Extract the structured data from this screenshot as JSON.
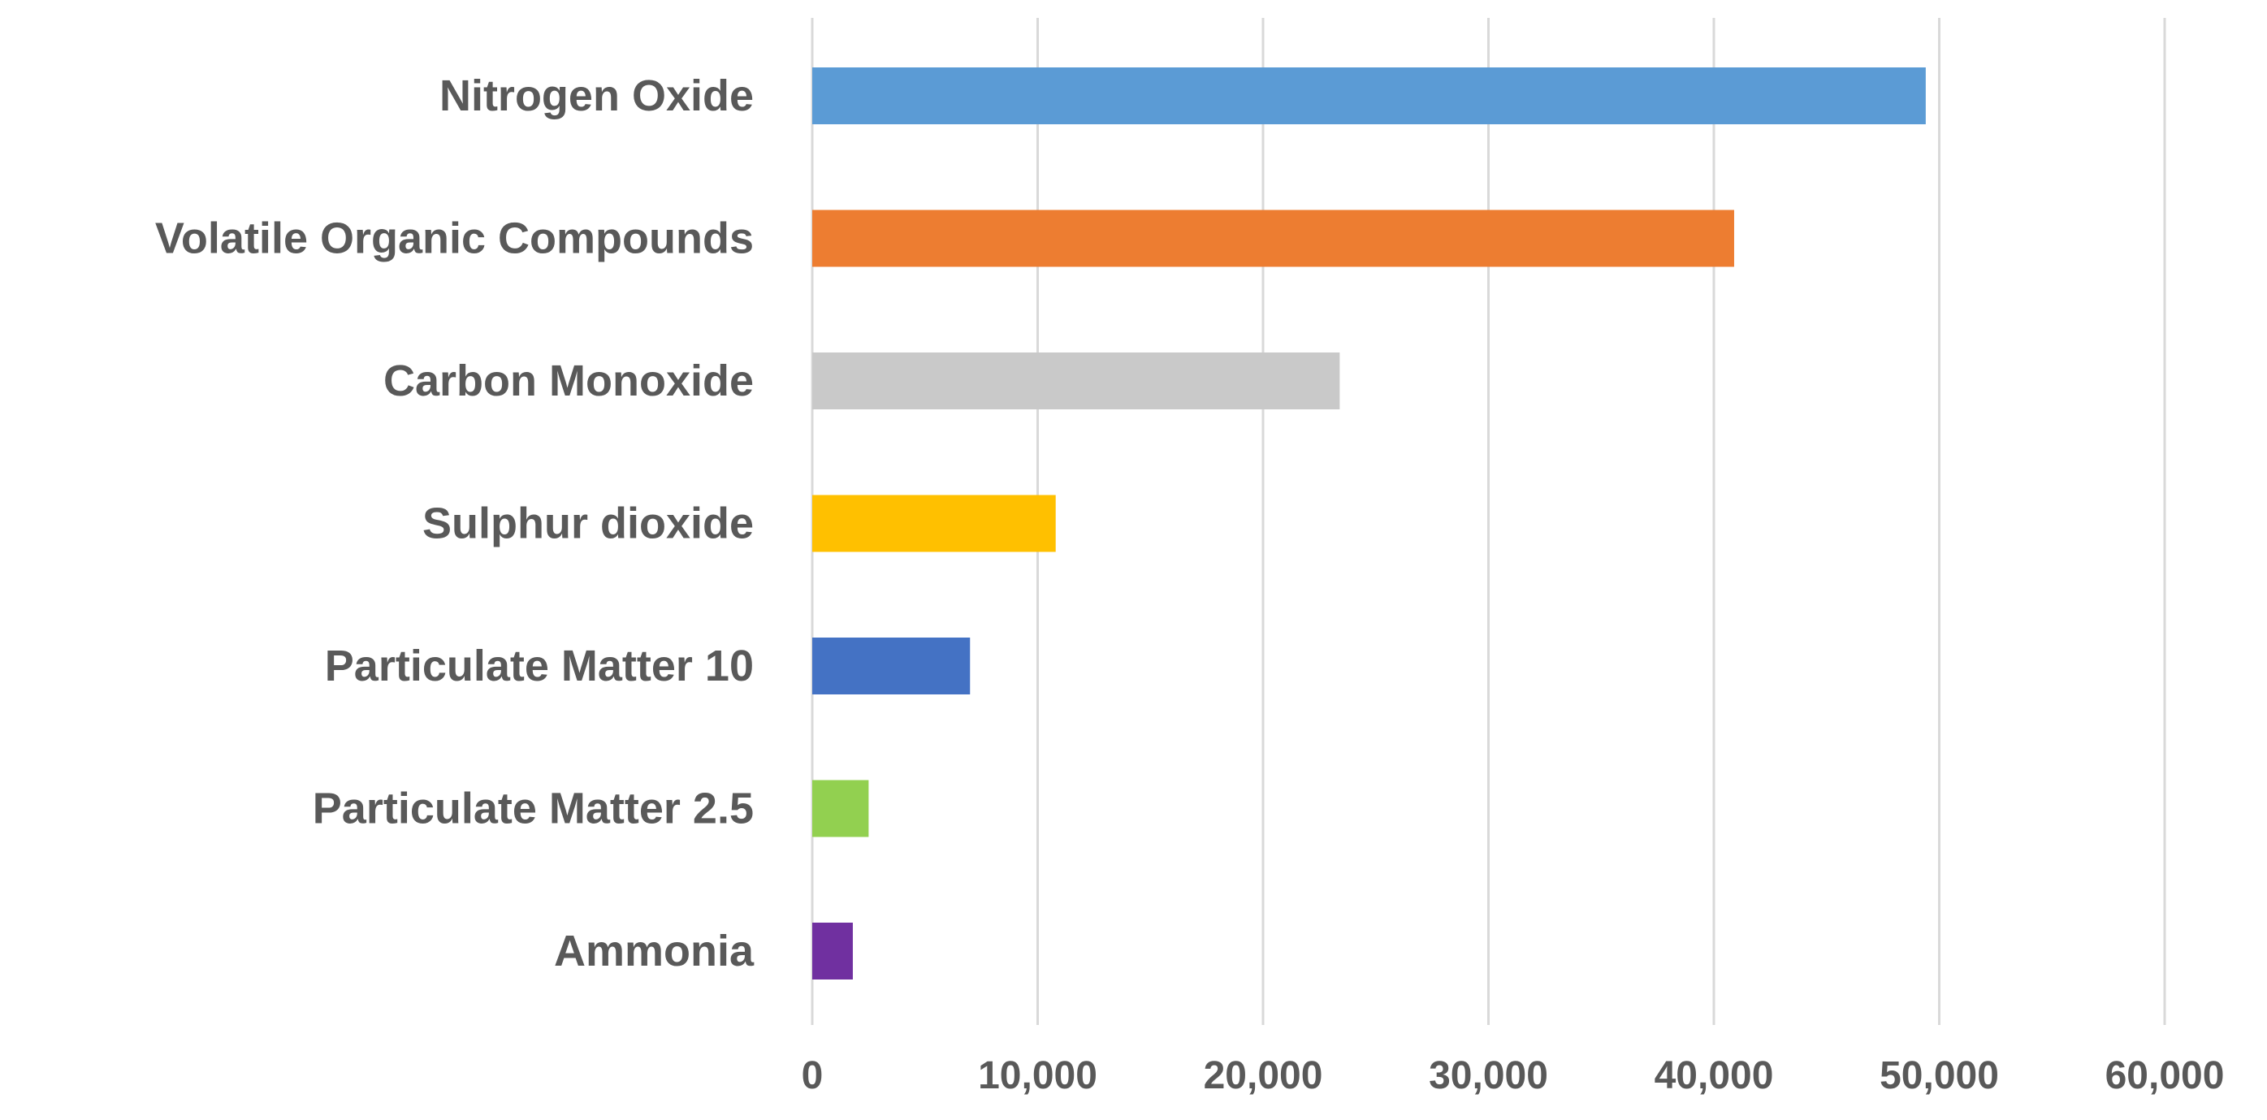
{
  "chart_data": {
    "type": "bar",
    "orientation": "horizontal",
    "title": "",
    "xlabel": "",
    "ylabel": "",
    "categories": [
      "Nitrogen Oxide",
      "Volatile Organic Compounds",
      "Carbon Monoxide",
      "Sulphur dioxide",
      "Particulate Matter 10",
      "Particulate Matter 2.5",
      "Ammonia"
    ],
    "values": [
      49400,
      40900,
      23400,
      10800,
      7000,
      2500,
      1800
    ],
    "colors": [
      "#5b9bd5",
      "#ed7d31",
      "#c9c9c9",
      "#ffc000",
      "#4472c4",
      "#92d050",
      "#7030a0"
    ],
    "xlim": [
      0,
      60000
    ],
    "xticks": [
      0,
      10000,
      20000,
      30000,
      40000,
      50000,
      60000
    ],
    "xtick_labels": [
      "0",
      "10,000",
      "20,000",
      "30,000",
      "40,000",
      "50,000",
      "60,000"
    ],
    "grid": "vertical",
    "legend": "none"
  }
}
